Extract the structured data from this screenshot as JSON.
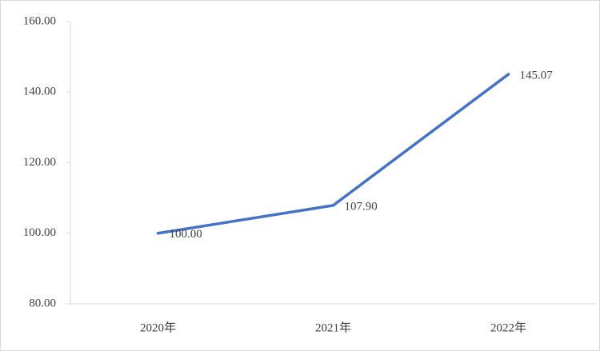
{
  "chart_data": {
    "type": "line",
    "categories": [
      "2020年",
      "2021年",
      "2022年"
    ],
    "values": [
      100,
      107.9,
      145.07
    ],
    "value_labels": [
      "100.00",
      "107.90",
      "145.07"
    ],
    "color": "#4472c4",
    "ylim": [
      80,
      160
    ],
    "yticks": [
      {
        "value": 80,
        "label": "80.00"
      },
      {
        "value": 100,
        "label": "100.00"
      },
      {
        "value": 120,
        "label": "120.00"
      },
      {
        "value": 140,
        "label": "140.00"
      },
      {
        "value": 160,
        "label": "160.00"
      }
    ],
    "grid": false
  }
}
